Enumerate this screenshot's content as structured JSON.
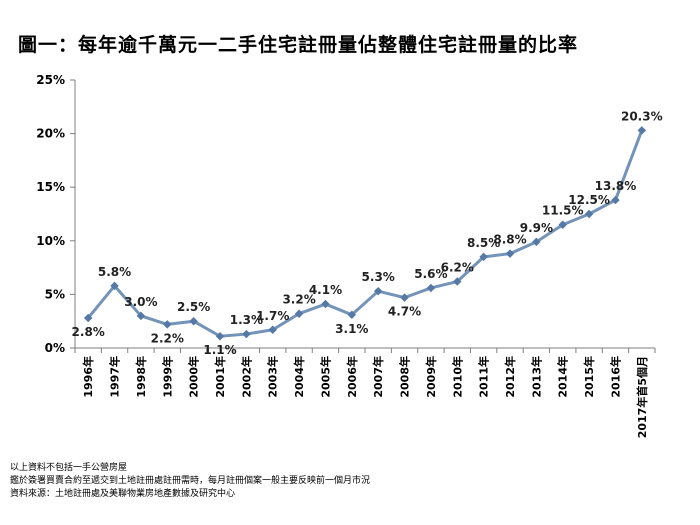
{
  "header": {
    "title": "圖一：每年逾千萬元一二手住宅註冊量佔整體住宅註冊量的比率"
  },
  "chart_data": {
    "type": "line",
    "title": "圖一：每年逾千萬元一二手住宅註冊量佔整體住宅註冊量的比率",
    "xlabel": "",
    "ylabel": "",
    "ylim": [
      0,
      25
    ],
    "yticks": [
      0,
      5,
      10,
      15,
      20,
      25
    ],
    "ytick_labels": [
      "0%",
      "5%",
      "10%",
      "15%",
      "20%",
      "25%"
    ],
    "grid": false,
    "categories": [
      "1996年",
      "1997年",
      "1998年",
      "1999年",
      "2000年",
      "2001年",
      "2002年",
      "2003年",
      "2004年",
      "2005年",
      "2006年",
      "2007年",
      "2008年",
      "2009年",
      "2010年",
      "2011年",
      "2012年",
      "2013年",
      "2014年",
      "2015年",
      "2016年",
      "2017年首5個月"
    ],
    "series": [
      {
        "name": "比率",
        "values": [
          2.8,
          5.8,
          3.0,
          2.2,
          2.5,
          1.1,
          1.3,
          1.7,
          3.2,
          4.1,
          3.1,
          5.3,
          4.7,
          5.6,
          6.2,
          8.5,
          8.8,
          9.9,
          11.5,
          12.5,
          13.8,
          20.3
        ],
        "value_labels": [
          "2.8%",
          "5.8%",
          "3.0%",
          "2.2%",
          "2.5%",
          "1.1%",
          "1.3%",
          "1.7%",
          "3.2%",
          "4.1%",
          "3.1%",
          "5.3%",
          "4.7%",
          "5.6%",
          "6.2%",
          "8.5%",
          "8.8%",
          "9.9%",
          "11.5%",
          "12.5%",
          "13.8%",
          "20.3%"
        ],
        "label_position": [
          "below",
          "above",
          "above",
          "below",
          "above",
          "below",
          "above",
          "above",
          "above",
          "above",
          "below",
          "above",
          "below",
          "above",
          "above",
          "above",
          "above",
          "above",
          "above",
          "above",
          "above",
          "above"
        ]
      }
    ],
    "colors": {
      "line": "#7393b8",
      "marker": "#5579a6",
      "axis": "#7f7f7f"
    }
  },
  "notes": [
    "以上資料不包括一手公營房屋",
    "鑑於簽署買賣合約至遞交到土地註冊處註冊需時，每月註冊個案一般主要反映前一個月市況",
    "資料來源：土地註冊處及美聯物業房地產數據及研究中心"
  ]
}
